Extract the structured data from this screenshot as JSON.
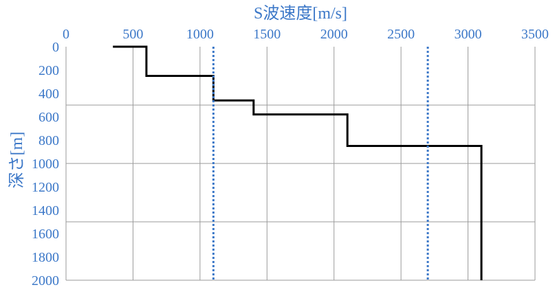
{
  "chart_data": {
    "type": "line",
    "title": "",
    "xlabel": "S波速度[m/s]",
    "ylabel": "深さ[m]",
    "x_axis_position": "top",
    "y_axis_inverted": true,
    "xlim": [
      0,
      3500
    ],
    "ylim": [
      0,
      2000
    ],
    "xticks": [
      0,
      500,
      1000,
      1500,
      2000,
      2500,
      3000,
      3500
    ],
    "yticks": [
      0,
      200,
      400,
      600,
      800,
      1000,
      1200,
      1400,
      1600,
      1800,
      2000
    ],
    "grid": {
      "vertical": [
        0,
        500,
        1000,
        1500,
        2000,
        2500,
        3000,
        3500
      ],
      "horizontal": [
        500,
        1000,
        1500,
        2000
      ]
    },
    "series": [
      {
        "style": "solid",
        "color": "#000000",
        "points": [
          {
            "x": 350,
            "y": 0
          },
          {
            "x": 600,
            "y": 0
          },
          {
            "x": 600,
            "y": 250
          },
          {
            "x": 1100,
            "y": 250
          },
          {
            "x": 1100,
            "y": 460
          },
          {
            "x": 1400,
            "y": 460
          },
          {
            "x": 1400,
            "y": 580
          },
          {
            "x": 2100,
            "y": 580
          },
          {
            "x": 2100,
            "y": 850
          },
          {
            "x": 3100,
            "y": 850
          },
          {
            "x": 3100,
            "y": 2000
          }
        ]
      },
      {
        "style": "dotted",
        "color": "#3c78c8",
        "points": [
          {
            "x": 1100,
            "y": 0
          },
          {
            "x": 1100,
            "y": 2000
          }
        ]
      },
      {
        "style": "dotted",
        "color": "#3c78c8",
        "points": [
          {
            "x": 2700,
            "y": 0
          },
          {
            "x": 2700,
            "y": 2000
          }
        ]
      }
    ],
    "colors": {
      "label": "#3c78c8",
      "grid": "#9a9a9a",
      "line": "#000000",
      "reference": "#3c78c8"
    }
  }
}
